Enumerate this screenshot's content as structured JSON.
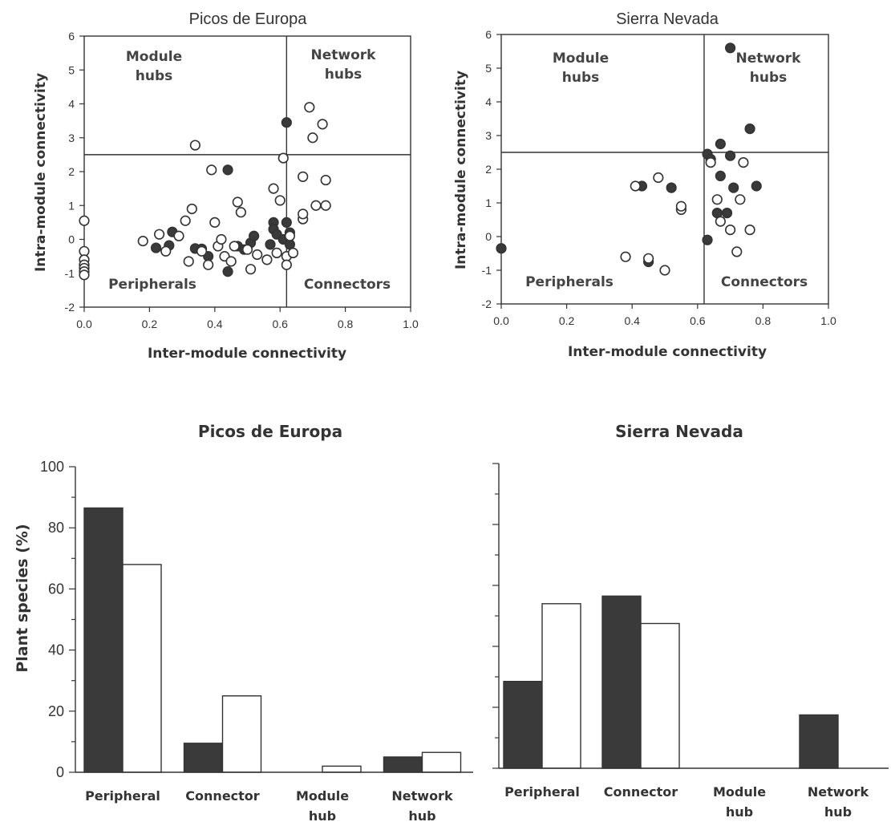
{
  "colors": {
    "ink": "#333333",
    "filled": "#3a3a3a",
    "open": "#ffffff"
  },
  "chart_data": [
    {
      "type": "scatter",
      "title": "Picos de Europa",
      "xlabel": "Inter-module connectivity",
      "ylabel": "Intra-module connectivity",
      "xlim": [
        0,
        1
      ],
      "ylim": [
        -2,
        6
      ],
      "xticks": [
        "0.0",
        "0.2",
        "0.4",
        "0.6",
        "0.8",
        "1.0"
      ],
      "yticks": [
        "-2",
        "-1",
        "0",
        "1",
        "2",
        "3",
        "4",
        "5",
        "6"
      ],
      "thresholds": {
        "x": 0.62,
        "y": 2.5
      },
      "quadrants": {
        "module_hubs": "Module\nhubs",
        "network_hubs": "Network\nhubs",
        "peripherals": "Peripherals",
        "connectors": "Connectors"
      },
      "series": [
        {
          "style": "filled",
          "points": [
            [
              0.44,
              2.05
            ],
            [
              0.62,
              3.45
            ],
            [
              0.27,
              0.22
            ],
            [
              0.26,
              -0.18
            ],
            [
              0.22,
              -0.25
            ],
            [
              0.34,
              -0.27
            ],
            [
              0.36,
              -0.28
            ],
            [
              0.38,
              -0.5
            ],
            [
              0.44,
              -0.95
            ],
            [
              0.47,
              -0.2
            ],
            [
              0.49,
              -0.3
            ],
            [
              0.51,
              -0.1
            ],
            [
              0.52,
              0.1
            ],
            [
              0.57,
              -0.15
            ],
            [
              0.58,
              0.5
            ],
            [
              0.58,
              0.3
            ],
            [
              0.59,
              0.15
            ],
            [
              0.61,
              0.0
            ],
            [
              0.62,
              0.5
            ],
            [
              0.63,
              0.2
            ],
            [
              0.63,
              -0.15
            ]
          ]
        },
        {
          "style": "open",
          "points": [
            [
              0.0,
              0.55
            ],
            [
              0.0,
              -0.35
            ],
            [
              0.0,
              -0.6
            ],
            [
              0.0,
              -0.75
            ],
            [
              0.0,
              -0.85
            ],
            [
              0.0,
              -0.95
            ],
            [
              0.0,
              -1.05
            ],
            [
              0.18,
              -0.05
            ],
            [
              0.23,
              0.15
            ],
            [
              0.25,
              -0.35
            ],
            [
              0.29,
              0.1
            ],
            [
              0.31,
              0.55
            ],
            [
              0.32,
              -0.65
            ],
            [
              0.33,
              0.9
            ],
            [
              0.34,
              2.78
            ],
            [
              0.36,
              -0.35
            ],
            [
              0.38,
              -0.75
            ],
            [
              0.39,
              2.05
            ],
            [
              0.4,
              0.5
            ],
            [
              0.41,
              -0.2
            ],
            [
              0.42,
              0.0
            ],
            [
              0.43,
              -0.5
            ],
            [
              0.45,
              -0.65
            ],
            [
              0.46,
              -0.2
            ],
            [
              0.47,
              1.1
            ],
            [
              0.48,
              0.8
            ],
            [
              0.5,
              -0.3
            ],
            [
              0.51,
              -0.88
            ],
            [
              0.53,
              -0.45
            ],
            [
              0.56,
              -0.6
            ],
            [
              0.58,
              1.5
            ],
            [
              0.59,
              -0.4
            ],
            [
              0.6,
              1.15
            ],
            [
              0.61,
              2.4
            ],
            [
              0.62,
              -0.5
            ],
            [
              0.62,
              -0.75
            ],
            [
              0.63,
              0.1
            ],
            [
              0.64,
              -0.4
            ],
            [
              0.67,
              0.6
            ],
            [
              0.67,
              0.75
            ],
            [
              0.67,
              1.85
            ],
            [
              0.69,
              3.9
            ],
            [
              0.7,
              3.0
            ],
            [
              0.71,
              1.0
            ],
            [
              0.73,
              3.4
            ],
            [
              0.74,
              1.75
            ],
            [
              0.74,
              1.0
            ]
          ]
        }
      ]
    },
    {
      "type": "scatter",
      "title": "Sierra Nevada",
      "xlabel": "Inter-module connectivity",
      "ylabel": "Intra-module connectivity",
      "xlim": [
        0,
        1
      ],
      "ylim": [
        -2,
        6
      ],
      "xticks": [
        "0.0",
        "0.2",
        "0.4",
        "0.6",
        "0.8",
        "1.0"
      ],
      "yticks": [
        "-2",
        "-1",
        "0",
        "1",
        "2",
        "3",
        "4",
        "5",
        "6"
      ],
      "thresholds": {
        "x": 0.62,
        "y": 2.5
      },
      "quadrants": {
        "module_hubs": "Module\nhubs",
        "network_hubs": "Network\nhubs",
        "peripherals": "Peripherals",
        "connectors": "Connectors"
      },
      "series": [
        {
          "style": "filled",
          "points": [
            [
              0.0,
              -0.35
            ],
            [
              0.43,
              1.5
            ],
            [
              0.45,
              -0.75
            ],
            [
              0.52,
              1.45
            ],
            [
              0.63,
              -0.1
            ],
            [
              0.63,
              2.45
            ],
            [
              0.64,
              2.3
            ],
            [
              0.66,
              0.7
            ],
            [
              0.67,
              2.75
            ],
            [
              0.67,
              1.8
            ],
            [
              0.69,
              0.7
            ],
            [
              0.7,
              2.4
            ],
            [
              0.7,
              5.6
            ],
            [
              0.71,
              1.45
            ],
            [
              0.76,
              3.2
            ],
            [
              0.78,
              1.5
            ]
          ]
        },
        {
          "style": "open",
          "points": [
            [
              0.38,
              -0.6
            ],
            [
              0.41,
              1.5
            ],
            [
              0.45,
              -0.65
            ],
            [
              0.48,
              1.75
            ],
            [
              0.5,
              -1.0
            ],
            [
              0.55,
              0.8
            ],
            [
              0.55,
              0.9
            ],
            [
              0.64,
              2.2
            ],
            [
              0.66,
              1.1
            ],
            [
              0.67,
              0.45
            ],
            [
              0.7,
              0.2
            ],
            [
              0.72,
              -0.45
            ],
            [
              0.73,
              1.1
            ],
            [
              0.74,
              2.2
            ],
            [
              0.76,
              0.2
            ]
          ]
        }
      ]
    },
    {
      "type": "bar",
      "title": "Picos de Europa",
      "ylabel": "Plant species (%)",
      "ylim": [
        0,
        100
      ],
      "yticks": [
        "0",
        "20",
        "40",
        "60",
        "80",
        "100"
      ],
      "categories": [
        "Peripheral",
        "Connector",
        "Module\nhub",
        "Network\nhub"
      ],
      "series": [
        {
          "style": "filled",
          "values": [
            86.5,
            9.5,
            0,
            5
          ]
        },
        {
          "style": "open",
          "values": [
            68,
            25,
            2,
            6.5
          ]
        }
      ]
    },
    {
      "type": "bar",
      "title": "Sierra Nevada",
      "ylabel": "",
      "ylim": [
        0,
        100
      ],
      "yticks": [],
      "categories": [
        "Peripheral",
        "Connector",
        "Module\nhub",
        "Network\nhub"
      ],
      "series": [
        {
          "style": "filled",
          "values": [
            28.5,
            56.5,
            0,
            17.5
          ]
        },
        {
          "style": "open",
          "values": [
            54,
            47.5,
            0,
            0
          ]
        }
      ]
    }
  ]
}
